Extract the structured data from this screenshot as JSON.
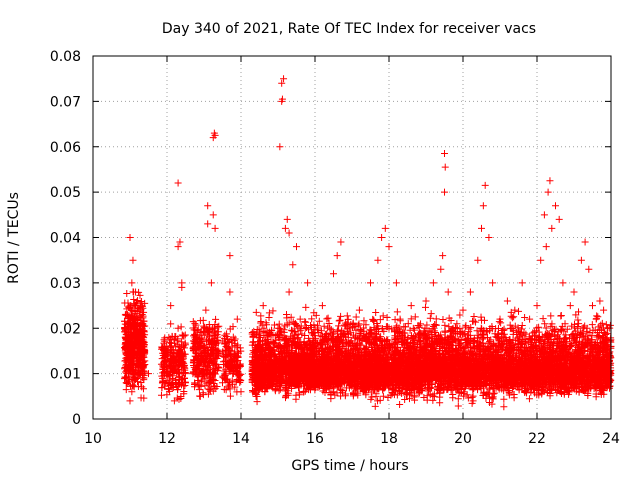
{
  "chart_data": {
    "type": "scatter",
    "title": "Day 340 of 2021, Rate Of TEC Index for receiver vacs",
    "xlabel": "GPS time / hours",
    "ylabel": "ROTI / TECUs",
    "xlim": [
      10,
      24
    ],
    "ylim": [
      0,
      0.08
    ],
    "x_ticks": [
      "10",
      "12",
      "14",
      "16",
      "18",
      "20",
      "22",
      "24"
    ],
    "y_ticks": [
      "0",
      "0.01",
      "0.02",
      "0.03",
      "0.04",
      "0.05",
      "0.06",
      "0.07",
      "0.08"
    ],
    "grid": true,
    "marker": "plus",
    "color": "#ff0000",
    "series": [
      {
        "name": "ROTI",
        "points": [
          [
            10.9,
            0.008
          ],
          [
            10.95,
            0.012
          ],
          [
            11.0,
            0.018
          ],
          [
            11.02,
            0.025
          ],
          [
            11.05,
            0.03
          ],
          [
            11.08,
            0.035
          ],
          [
            11.0,
            0.04
          ],
          [
            11.1,
            0.02
          ],
          [
            11.15,
            0.028
          ],
          [
            11.2,
            0.022
          ],
          [
            11.1,
            0.01
          ],
          [
            11.05,
            0.006
          ],
          [
            11.0,
            0.004
          ],
          [
            11.12,
            0.015
          ],
          [
            11.18,
            0.012
          ],
          [
            11.25,
            0.017
          ],
          [
            11.4,
            0.012
          ],
          [
            11.5,
            0.01
          ],
          [
            11.9,
            0.014
          ],
          [
            12.0,
            0.008
          ],
          [
            12.05,
            0.018
          ],
          [
            12.1,
            0.025
          ],
          [
            12.2,
            0.004
          ],
          [
            12.3,
            0.02
          ],
          [
            12.3,
            0.038
          ],
          [
            12.35,
            0.039
          ],
          [
            12.3,
            0.052
          ],
          [
            12.4,
            0.029
          ],
          [
            12.4,
            0.03
          ],
          [
            12.5,
            0.008
          ],
          [
            12.7,
            0.01
          ],
          [
            12.8,
            0.018
          ],
          [
            12.9,
            0.005
          ],
          [
            13.0,
            0.02
          ],
          [
            13.05,
            0.024
          ],
          [
            13.1,
            0.043
          ],
          [
            13.1,
            0.047
          ],
          [
            13.2,
            0.03
          ],
          [
            13.25,
            0.045
          ],
          [
            13.3,
            0.042
          ],
          [
            13.25,
            0.062
          ],
          [
            13.28,
            0.063
          ],
          [
            13.3,
            0.0625
          ],
          [
            13.35,
            0.015
          ],
          [
            13.5,
            0.008
          ],
          [
            13.6,
            0.012
          ],
          [
            13.7,
            0.036
          ],
          [
            13.7,
            0.028
          ],
          [
            13.8,
            0.01
          ],
          [
            13.9,
            0.022
          ],
          [
            14.0,
            0.006
          ],
          [
            14.3,
            0.012
          ],
          [
            14.5,
            0.016
          ],
          [
            14.6,
            0.025
          ],
          [
            14.8,
            0.01
          ],
          [
            15.0,
            0.02
          ],
          [
            15.05,
            0.06
          ],
          [
            15.1,
            0.07
          ],
          [
            15.12,
            0.0705
          ],
          [
            15.1,
            0.074
          ],
          [
            15.15,
            0.075
          ],
          [
            15.2,
            0.042
          ],
          [
            15.25,
            0.044
          ],
          [
            15.3,
            0.041
          ],
          [
            15.3,
            0.028
          ],
          [
            15.4,
            0.034
          ],
          [
            15.5,
            0.038
          ],
          [
            15.6,
            0.022
          ],
          [
            15.8,
            0.03
          ],
          [
            16.0,
            0.015
          ],
          [
            16.2,
            0.025
          ],
          [
            16.4,
            0.02
          ],
          [
            16.5,
            0.032
          ],
          [
            16.6,
            0.036
          ],
          [
            16.7,
            0.039
          ],
          [
            16.9,
            0.018
          ],
          [
            17.2,
            0.024
          ],
          [
            17.5,
            0.03
          ],
          [
            17.7,
            0.035
          ],
          [
            17.8,
            0.04
          ],
          [
            17.9,
            0.042
          ],
          [
            18.0,
            0.038
          ],
          [
            18.0,
            0.02
          ],
          [
            18.2,
            0.03
          ],
          [
            18.3,
            0.022
          ],
          [
            18.6,
            0.025
          ],
          [
            18.8,
            0.018
          ],
          [
            19.0,
            0.026
          ],
          [
            19.2,
            0.03
          ],
          [
            19.4,
            0.033
          ],
          [
            19.45,
            0.036
          ],
          [
            19.5,
            0.05
          ],
          [
            19.52,
            0.0555
          ],
          [
            19.5,
            0.0585
          ],
          [
            19.6,
            0.028
          ],
          [
            19.8,
            0.02
          ],
          [
            20.0,
            0.024
          ],
          [
            20.2,
            0.028
          ],
          [
            20.4,
            0.035
          ],
          [
            20.5,
            0.042
          ],
          [
            20.55,
            0.047
          ],
          [
            20.6,
            0.0515
          ],
          [
            20.7,
            0.04
          ],
          [
            20.8,
            0.03
          ],
          [
            21.0,
            0.022
          ],
          [
            21.2,
            0.026
          ],
          [
            21.4,
            0.024
          ],
          [
            21.6,
            0.03
          ],
          [
            21.8,
            0.022
          ],
          [
            22.0,
            0.025
          ],
          [
            22.1,
            0.035
          ],
          [
            22.2,
            0.045
          ],
          [
            22.25,
            0.038
          ],
          [
            22.3,
            0.05
          ],
          [
            22.35,
            0.0525
          ],
          [
            22.4,
            0.042
          ],
          [
            22.5,
            0.047
          ],
          [
            22.6,
            0.044
          ],
          [
            22.7,
            0.03
          ],
          [
            22.9,
            0.025
          ],
          [
            23.0,
            0.028
          ],
          [
            23.1,
            0.02
          ],
          [
            23.2,
            0.035
          ],
          [
            23.3,
            0.039
          ],
          [
            23.4,
            0.033
          ],
          [
            23.5,
            0.025
          ],
          [
            23.6,
            0.022
          ],
          [
            23.7,
            0.026
          ],
          [
            23.8,
            0.024
          ],
          [
            23.9,
            0.02
          ],
          [
            24.0,
            0.016
          ]
        ],
        "bands": [
          {
            "x": [
              10.85,
              11.4
            ],
            "y": [
              0.003,
              0.03
            ],
            "n": 520
          },
          {
            "x": [
              11.85,
              12.5
            ],
            "y": [
              0.002,
              0.022
            ],
            "n": 260
          },
          {
            "x": [
              12.7,
              13.4
            ],
            "y": [
              0.003,
              0.025
            ],
            "n": 320
          },
          {
            "x": [
              13.5,
              14.0
            ],
            "y": [
              0.003,
              0.022
            ],
            "n": 160
          },
          {
            "x": [
              14.3,
              24.0
            ],
            "y": [
              0.002,
              0.025
            ],
            "n": 4200
          },
          {
            "x": [
              14.3,
              24.0
            ],
            "y": [
              0.004,
              0.016
            ],
            "n": 3600
          }
        ]
      }
    ]
  }
}
